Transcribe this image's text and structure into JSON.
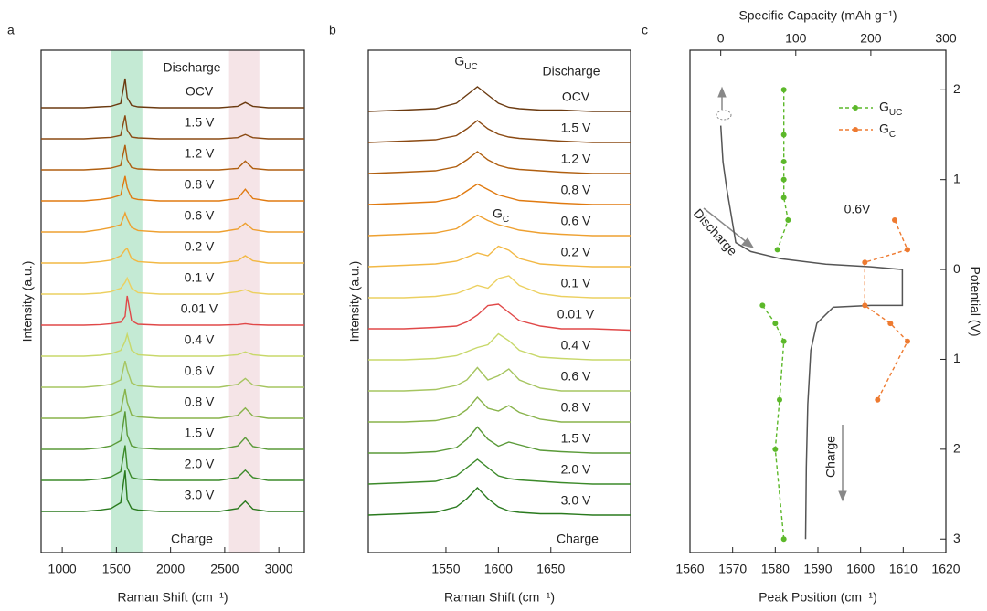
{
  "chart_data": [
    {
      "type": "spectra",
      "panel_label": "a",
      "xlabel": "Raman Shift (cm⁻¹)",
      "ylabel": "Intensity (a.u.)",
      "xlim": [
        805,
        3235
      ],
      "xticks": [
        1000,
        1500,
        2000,
        2500,
        3000
      ],
      "highlight_bands": [
        {
          "range": [
            1450,
            1740
          ],
          "color": "#c4ead4"
        },
        {
          "range": [
            2540,
            2820
          ],
          "color": "#f5e4e7"
        }
      ],
      "annotations": [
        {
          "text": "Discharge",
          "color": "#7a4a1a"
        },
        {
          "text": "Charge",
          "color": "#2a7a1e"
        }
      ],
      "x": [
        805,
        1000,
        1200,
        1350,
        1450,
        1540,
        1580,
        1600,
        1640,
        1700,
        1900,
        2200,
        2450,
        2620,
        2690,
        2760,
        2900,
        3235
      ],
      "series": [
        {
          "name": "OCV",
          "color": "#6b3a10",
          "values": [
            0,
            0,
            0,
            0.03,
            0.05,
            0.15,
            1.0,
            0.35,
            0.08,
            0.03,
            0,
            0,
            0,
            0.05,
            0.18,
            0.05,
            0,
            0
          ]
        },
        {
          "name": "1.5 V",
          "color": "#8b4a13",
          "values": [
            0,
            0,
            0,
            0.03,
            0.05,
            0.12,
            0.8,
            0.3,
            0.06,
            0.03,
            0,
            0,
            0,
            0.04,
            0.15,
            0.04,
            0,
            0
          ]
        },
        {
          "name": "1.2 V",
          "color": "#b05f10",
          "values": [
            0,
            0,
            0,
            0.03,
            0.06,
            0.15,
            0.85,
            0.35,
            0.08,
            0.03,
            0,
            0,
            0,
            0.05,
            0.3,
            0.05,
            0,
            0
          ]
        },
        {
          "name": "0.8 V",
          "color": "#e07a10",
          "values": [
            0,
            0,
            0,
            0.05,
            0.1,
            0.2,
            0.85,
            0.45,
            0.1,
            0.05,
            0,
            0,
            0,
            0.08,
            0.4,
            0.08,
            0,
            0
          ]
        },
        {
          "name": "0.6 V",
          "color": "#eea030",
          "values": [
            0,
            0,
            0,
            0.08,
            0.15,
            0.25,
            0.65,
            0.45,
            0.15,
            0.05,
            0,
            0,
            0,
            0.1,
            0.3,
            0.08,
            0,
            0
          ]
        },
        {
          "name": "0.2 V",
          "color": "#f2b844",
          "values": [
            0,
            0,
            0,
            0.05,
            0.1,
            0.25,
            0.45,
            0.5,
            0.15,
            0.05,
            0,
            0,
            0,
            0.08,
            0.25,
            0.08,
            0,
            0
          ]
        },
        {
          "name": "0.1 V",
          "color": "#ecd060",
          "values": [
            0,
            0,
            0,
            0.03,
            0.08,
            0.2,
            0.4,
            0.55,
            0.2,
            0.05,
            0,
            0,
            0,
            0.08,
            0.15,
            0.05,
            0,
            0
          ]
        },
        {
          "name": "0.01 V",
          "color": "#e04848",
          "values": [
            0,
            0,
            0,
            0.02,
            0.05,
            0.1,
            0.3,
            1.0,
            0.15,
            0.03,
            0,
            0,
            0,
            0.02,
            0.05,
            0.02,
            0,
            0
          ]
        },
        {
          "name": "0.4 V",
          "color": "#c8d86a",
          "values": [
            0,
            0,
            0,
            0.03,
            0.08,
            0.2,
            0.5,
            0.75,
            0.2,
            0.05,
            0,
            0,
            0,
            0.05,
            0.15,
            0.05,
            0,
            0
          ]
        },
        {
          "name": "0.6 V",
          "color": "#a6c560",
          "values": [
            0,
            0,
            0,
            0.05,
            0.1,
            0.25,
            0.9,
            0.6,
            0.15,
            0.05,
            0,
            0,
            0,
            0.1,
            0.3,
            0.08,
            0,
            0
          ]
        },
        {
          "name": "0.8 V",
          "color": "#88b34a",
          "values": [
            0,
            0,
            0,
            0.05,
            0.1,
            0.25,
            1.0,
            0.55,
            0.12,
            0.05,
            0,
            0,
            0,
            0.1,
            0.35,
            0.08,
            0,
            0
          ]
        },
        {
          "name": "1.5 V",
          "color": "#5a9a38",
          "values": [
            0,
            0,
            0,
            0.05,
            0.12,
            0.3,
            1.3,
            0.5,
            0.12,
            0.05,
            0,
            0,
            0,
            0.12,
            0.4,
            0.1,
            0,
            0
          ]
        },
        {
          "name": "2.0 V",
          "color": "#3c8a2a",
          "values": [
            0,
            0,
            0,
            0.05,
            0.12,
            0.3,
            1.2,
            0.45,
            0.1,
            0.05,
            0,
            0,
            0,
            0.1,
            0.35,
            0.1,
            0,
            0
          ]
        },
        {
          "name": "3.0 V",
          "color": "#2a7a1e",
          "values": [
            0,
            0,
            0,
            0.05,
            0.1,
            0.3,
            1.4,
            0.4,
            0.1,
            0.05,
            0,
            0,
            0,
            0.1,
            0.35,
            0.08,
            0,
            0
          ]
        }
      ]
    },
    {
      "type": "spectra",
      "panel_label": "b",
      "xlabel": "Raman Shift (cm⁻¹)",
      "ylabel": "Intensity (a.u.)",
      "xlim": [
        1476,
        1726
      ],
      "xticks": [
        1550,
        1600,
        1650
      ],
      "annotations": [
        {
          "text": "G",
          "sub": "UC",
          "color": "#6cbf2a"
        },
        {
          "text": "Discharge",
          "color": "#7a4a1a"
        },
        {
          "text": "G",
          "sub": "C",
          "color": "#e8623a"
        },
        {
          "text": "Charge",
          "color": "#2a7a1e"
        }
      ],
      "x": [
        1476,
        1510,
        1540,
        1560,
        1570,
        1580,
        1590,
        1600,
        1610,
        1620,
        1640,
        1660,
        1690,
        1726
      ],
      "series": [
        {
          "name": "OCV",
          "color": "#6b3a10",
          "values": [
            0,
            0.05,
            0.1,
            0.3,
            0.6,
            0.9,
            0.6,
            0.3,
            0.15,
            0.1,
            0.05,
            0.05,
            0,
            0
          ]
        },
        {
          "name": "1.5 V",
          "color": "#8b4a13",
          "values": [
            0,
            0.05,
            0.1,
            0.25,
            0.5,
            0.8,
            0.5,
            0.3,
            0.2,
            0.15,
            0.1,
            0.05,
            0,
            0
          ]
        },
        {
          "name": "1.2 V",
          "color": "#b05f10",
          "values": [
            0,
            0.05,
            0.1,
            0.25,
            0.5,
            0.8,
            0.5,
            0.3,
            0.2,
            0.15,
            0.1,
            0.05,
            0,
            0
          ]
        },
        {
          "name": "0.8 V",
          "color": "#e07a10",
          "values": [
            0,
            0.05,
            0.1,
            0.25,
            0.5,
            0.75,
            0.55,
            0.35,
            0.25,
            0.15,
            0.1,
            0.05,
            0,
            0
          ]
        },
        {
          "name": "0.6 V",
          "color": "#eea030",
          "values": [
            0,
            0.05,
            0.1,
            0.25,
            0.5,
            0.75,
            0.55,
            0.4,
            0.3,
            0.2,
            0.1,
            0.05,
            0,
            0
          ]
        },
        {
          "name": "0.2 V",
          "color": "#f2b844",
          "values": [
            0,
            0.05,
            0.1,
            0.2,
            0.35,
            0.5,
            0.4,
            0.75,
            0.6,
            0.3,
            0.1,
            0.05,
            0,
            0
          ]
        },
        {
          "name": "0.1 V",
          "color": "#ecd060",
          "values": [
            0,
            0,
            0.05,
            0.15,
            0.3,
            0.45,
            0.35,
            0.7,
            0.8,
            0.45,
            0.15,
            0.05,
            0,
            0
          ]
        },
        {
          "name": "0.01 V",
          "color": "#e04848",
          "values": [
            0,
            0,
            0.05,
            0.1,
            0.25,
            0.5,
            0.85,
            0.9,
            0.6,
            0.3,
            0.1,
            0,
            0,
            -0.05
          ]
        },
        {
          "name": "0.4 V",
          "color": "#c8d86a",
          "values": [
            0,
            0,
            0.05,
            0.15,
            0.3,
            0.45,
            0.55,
            0.95,
            0.7,
            0.35,
            0.1,
            0.05,
            0,
            0
          ]
        },
        {
          "name": "0.6 V",
          "color": "#a6c560",
          "values": [
            0,
            0,
            0.05,
            0.2,
            0.4,
            0.85,
            0.4,
            0.55,
            0.8,
            0.4,
            0.1,
            0,
            0,
            0
          ]
        },
        {
          "name": "0.8 V",
          "color": "#88b34a",
          "values": [
            0,
            0,
            0.05,
            0.2,
            0.45,
            0.9,
            0.5,
            0.4,
            0.6,
            0.35,
            0.1,
            0,
            0,
            0
          ]
        },
        {
          "name": "1.5 V",
          "color": "#5a9a38",
          "values": [
            0,
            0,
            0.05,
            0.2,
            0.5,
            0.95,
            0.5,
            0.25,
            0.4,
            0.3,
            0.1,
            0.05,
            0,
            0
          ]
        },
        {
          "name": "2.0 V",
          "color": "#3c8a2a",
          "values": [
            0,
            0.05,
            0.1,
            0.3,
            0.6,
            0.9,
            0.6,
            0.3,
            0.2,
            0.15,
            0.1,
            0.05,
            0,
            0
          ]
        },
        {
          "name": "3.0 V",
          "color": "#2a7a1e",
          "values": [
            0,
            0.05,
            0.1,
            0.3,
            0.6,
            1.0,
            0.6,
            0.3,
            0.15,
            0.1,
            0.05,
            0.05,
            0,
            0
          ]
        }
      ]
    },
    {
      "type": "scatter",
      "panel_label": "c",
      "xlabel": "Peak Position (cm⁻¹)",
      "x2label": "Specific Capacity (mAh g⁻¹)",
      "ylabel": "Potential (V)",
      "xlim": [
        1560,
        1620
      ],
      "xticks": [
        1560,
        1570,
        1580,
        1590,
        1600,
        1610,
        1620
      ],
      "x2lim": [
        -41,
        300
      ],
      "x2ticks": [
        0,
        100,
        200,
        300
      ],
      "ylim": [
        -3.15,
        2.44
      ],
      "yticks": [
        {
          "value": 2,
          "label": "2"
        },
        {
          "value": 1,
          "label": "1"
        },
        {
          "value": 0,
          "label": "0"
        },
        {
          "value": -1,
          "label": "1"
        },
        {
          "value": -2,
          "label": "2"
        },
        {
          "value": -3,
          "label": "3"
        }
      ],
      "annotations": [
        {
          "text": "Discharge",
          "color": "#777777"
        },
        {
          "text": "Charge",
          "color": "#777777"
        },
        {
          "text": "0.6V",
          "color": "#222222"
        }
      ],
      "series": [
        {
          "name": "G",
          "sub": "UC",
          "color": "#5cb82a",
          "x": [
            1582,
            1582,
            1582,
            1582,
            1582,
            1583,
            1580.5,
            null,
            1577,
            1580,
            1582,
            1581,
            1580,
            1582
          ],
          "values": [
            2.0,
            1.5,
            1.2,
            1.0,
            0.8,
            0.55,
            0.22,
            null,
            -0.4,
            -0.6,
            -0.8,
            -1.45,
            -2.0,
            -3.0
          ]
        },
        {
          "name": "G",
          "sub": "C",
          "color": "#ee7a30",
          "x": [
            1608,
            1611,
            1601,
            1601,
            1607,
            1611,
            1604
          ],
          "values": [
            0.55,
            0.22,
            0.08,
            -0.4,
            -0.6,
            -0.8,
            -1.45
          ]
        }
      ],
      "curve": {
        "color": "#555555",
        "axis": "x2",
        "x": [
          0,
          3,
          8,
          14,
          20,
          40,
          80,
          140,
          200,
          242,
          242,
          200,
          150,
          128,
          120,
          116,
          114,
          113
        ],
        "values": [
          1.6,
          1.2,
          0.9,
          0.6,
          0.3,
          0.2,
          0.12,
          0.06,
          0.03,
          0.0,
          -0.4,
          -0.4,
          -0.42,
          -0.6,
          -0.9,
          -1.5,
          -2.2,
          -3.0
        ]
      }
    }
  ]
}
